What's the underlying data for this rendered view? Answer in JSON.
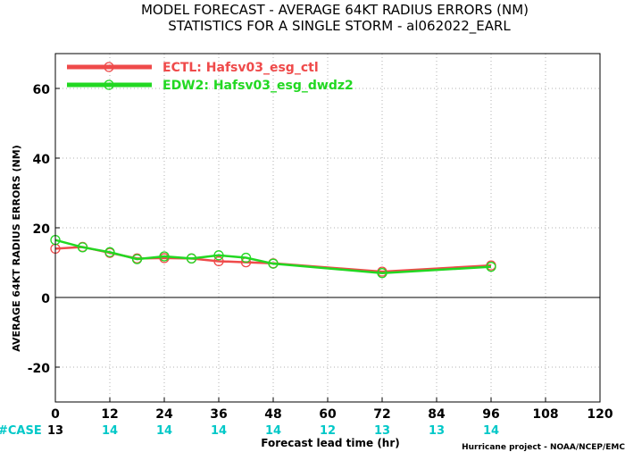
{
  "title_line1": "MODEL FORECAST - AVERAGE 64KT RADIUS ERRORS (NM)",
  "title_line2": "STATISTICS FOR A SINGLE STORM - al062022_EARL",
  "credit": "Hurricane project - NOAA/NCEP/EMC",
  "case_label": "#CASE",
  "colors": {
    "ECTL": "#ef4a4a",
    "EDW2": "#22d822",
    "case_first": "#000000",
    "case_rest": "#00c8c8",
    "zero_line": "#000000",
    "grid": "#b0b0b0"
  },
  "chart_data": {
    "type": "line",
    "title": "MODEL FORECAST - AVERAGE 64KT RADIUS ERRORS (NM)",
    "subtitle": "STATISTICS FOR A SINGLE STORM - al062022_EARL",
    "xlabel": "Forecast lead time (hr)",
    "ylabel": "AVERAGE 64KT RADIUS ERRORS (NM)",
    "xlim": [
      0,
      120
    ],
    "ylim": [
      -30,
      70
    ],
    "xticks": [
      0,
      12,
      24,
      36,
      48,
      60,
      72,
      84,
      96,
      108,
      120
    ],
    "yticks": [
      -20,
      0,
      20,
      40,
      60
    ],
    "grid": true,
    "legend_position": "top-left",
    "cases": [
      {
        "x": 0,
        "n": "13"
      },
      {
        "x": 12,
        "n": "14"
      },
      {
        "x": 24,
        "n": "14"
      },
      {
        "x": 36,
        "n": "14"
      },
      {
        "x": 48,
        "n": "14"
      },
      {
        "x": 60,
        "n": "12"
      },
      {
        "x": 72,
        "n": "13"
      },
      {
        "x": 84,
        "n": "13"
      },
      {
        "x": 96,
        "n": "14"
      }
    ],
    "series": [
      {
        "name": "ECTL: Hafsv03_esg_ctl",
        "key": "ECTL",
        "x": [
          0,
          6,
          12,
          18,
          24,
          30,
          36,
          42,
          48,
          72,
          96
        ],
        "y": [
          14.0,
          14.5,
          12.8,
          11.2,
          11.3,
          11.2,
          10.4,
          10.1,
          9.8,
          7.4,
          9.2
        ]
      },
      {
        "name": "EDW2: Hafsv03_esg_dwdz2",
        "key": "EDW2",
        "x": [
          0,
          6,
          12,
          18,
          24,
          30,
          36,
          42,
          48,
          72,
          96
        ],
        "y": [
          16.5,
          14.4,
          13.0,
          11.0,
          11.8,
          11.2,
          12.1,
          11.4,
          9.7,
          7.0,
          8.8
        ]
      }
    ]
  }
}
